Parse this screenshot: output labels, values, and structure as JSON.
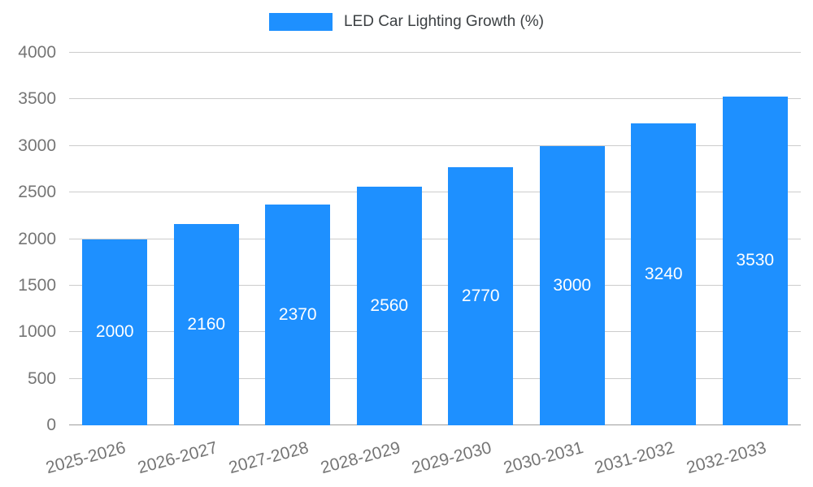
{
  "colors": {
    "bar": "#1E90FF",
    "grid": "#cccccc",
    "baseline": "#9e9e9e",
    "axis_text": "#757575",
    "bar_label_text": "#ffffff",
    "legend_text": "#3c4043"
  },
  "chart_data": {
    "type": "bar",
    "title": "LED Car Lighting Growth (%)",
    "legend_position": "top",
    "grid": true,
    "categories": [
      "2025-2026",
      "2026-2027",
      "2027-2028",
      "2028-2029",
      "2029-2030",
      "2030-2031",
      "2031-2032",
      "2032-2033"
    ],
    "values": [
      2000,
      2160,
      2370,
      2560,
      2770,
      3000,
      3240,
      3530
    ],
    "bar_labels": [
      "2000",
      "2160",
      "2370",
      "2560",
      "2770",
      "3000",
      "3240",
      "3530"
    ],
    "xlabel": "",
    "ylabel": "",
    "ylim": [
      0,
      4000
    ],
    "ytick_step": 500,
    "yticks": [
      0,
      500,
      1000,
      1500,
      2000,
      2500,
      3000,
      3500,
      4000
    ],
    "x_label_rotation_deg": -15
  }
}
